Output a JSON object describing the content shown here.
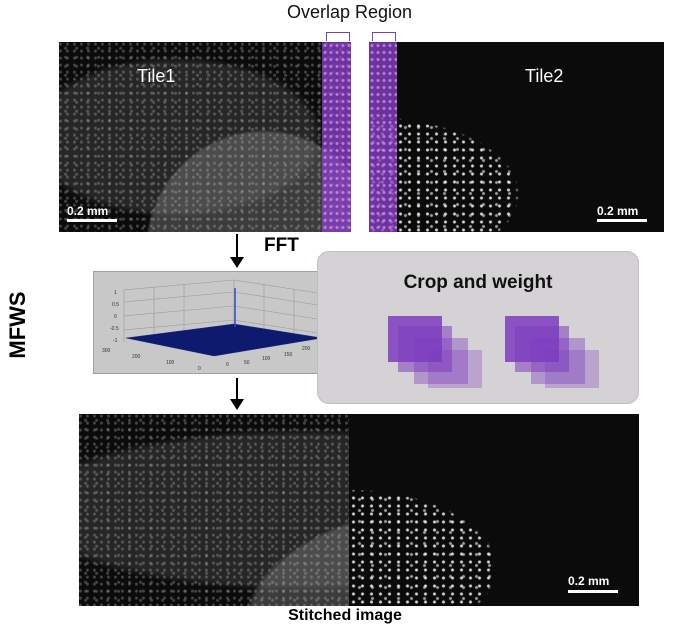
{
  "labels": {
    "overlap_region": "Overlap Region",
    "tile1": "Tile1",
    "tile2": "Tile2",
    "scale_bar": "0.2 mm",
    "fft": "FFT",
    "method": "MFWS",
    "crop_and_weight": "Crop and weight",
    "stitched_image": "Stitched image"
  },
  "fft_plot": {
    "z_ticks": [
      "1",
      "0.5",
      "0",
      "-0.5",
      "-1"
    ],
    "x_ticks": [
      "300",
      "200",
      "100",
      "0"
    ],
    "y_ticks": [
      "0",
      "50",
      "100",
      "150",
      "200",
      "250"
    ]
  },
  "colors": {
    "overlap_purple": "#8c3cc8",
    "square_purple": "#7e3cc0",
    "panel_gray": "#d4d2d4",
    "fft_surface": "#0d1a6e"
  }
}
